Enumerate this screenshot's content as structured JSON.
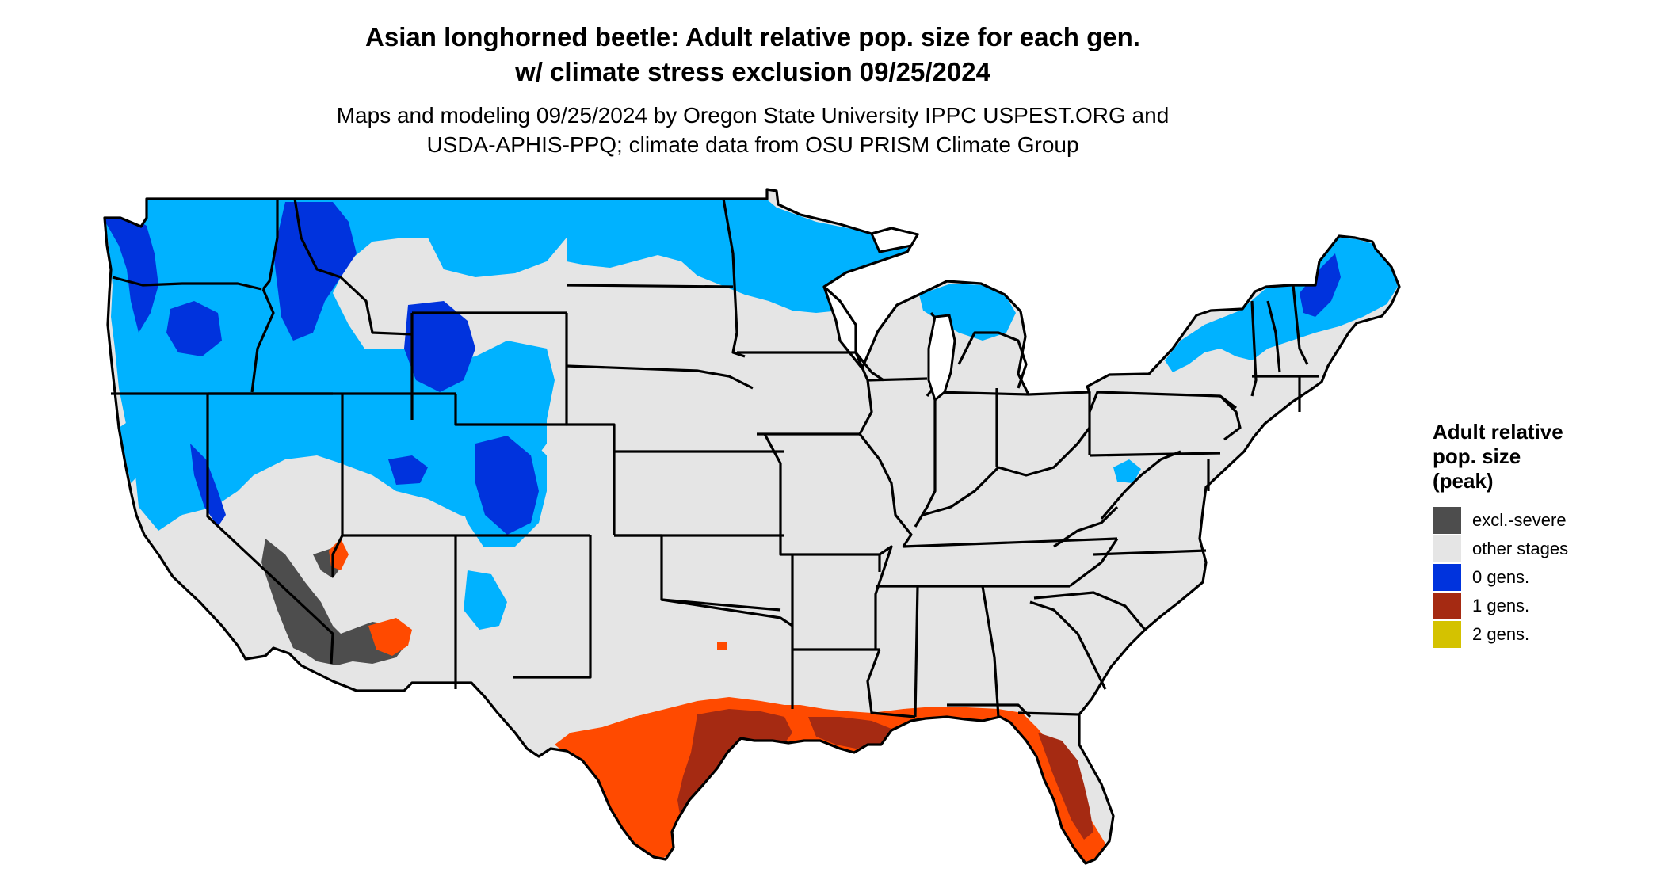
{
  "title_line1": "Asian longhorned beetle: Adult relative pop. size for each gen.",
  "title_line2": "w/ climate stress exclusion 09/25/2024",
  "subtitle_line1": "Maps and modeling 09/25/2024 by Oregon State University IPPC USPEST.ORG and",
  "subtitle_line2": "USDA-APHIS-PPQ; climate data from OSU PRISM Climate Group",
  "legend": {
    "title_line1": "Adult relative",
    "title_line2": "pop. size",
    "title_line3": "(peak)",
    "items": [
      {
        "label": "excl.-severe",
        "color": "#4d4d4d"
      },
      {
        "label": "other stages",
        "color": "#e5e5e5"
      },
      {
        "label": "0 gens.",
        "color": "#0033dd"
      },
      {
        "label": "1 gens.",
        "color": "#a52a12"
      },
      {
        "label": "2 gens.",
        "color": "#d4c200"
      }
    ]
  },
  "map_colors": {
    "land": "#e5e5e5",
    "border": "#000000",
    "zero_gens_light": "#00b2ff",
    "zero_gens_dark": "#0033dd",
    "one_gen_light": "#ff4a00",
    "one_gen_dark": "#a52a12",
    "excl_severe": "#4d4d4d",
    "water": "#ffffff"
  }
}
